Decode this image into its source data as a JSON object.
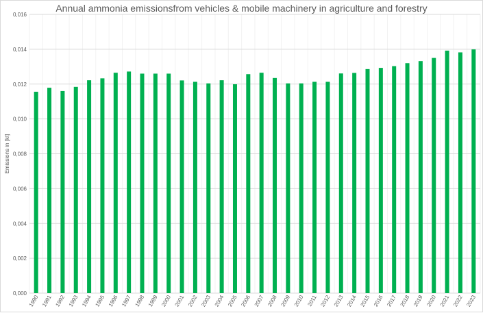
{
  "chart_data": {
    "type": "bar",
    "title": "Annual ammonia emissionsfrom vehicles & mobile machinery in agriculture and forestry",
    "xlabel": "",
    "ylabel": "Emissions in [kt]",
    "ylim": [
      0,
      0.016
    ],
    "yticks": [
      "0,000",
      "0,002",
      "0,004",
      "0,006",
      "0,008",
      "0,010",
      "0,012",
      "0,014",
      "0,016"
    ],
    "grid": true,
    "bar_color": "#00b050",
    "categories": [
      "1990",
      "1991",
      "1992",
      "1993",
      "1994",
      "1995",
      "1996",
      "1997",
      "1998",
      "1999",
      "2000",
      "2001",
      "2002",
      "2003",
      "2004",
      "2005",
      "2006",
      "2007",
      "2008",
      "2009",
      "2010",
      "2011",
      "2012",
      "2013",
      "2014",
      "2015",
      "2016",
      "2017",
      "2018",
      "2019",
      "2020",
      "2021",
      "2022",
      "2023"
    ],
    "values": [
      0.01156,
      0.01179,
      0.0116,
      0.01184,
      0.01222,
      0.01233,
      0.01265,
      0.01272,
      0.0126,
      0.0126,
      0.0126,
      0.01221,
      0.01213,
      0.01204,
      0.01222,
      0.01199,
      0.01257,
      0.01265,
      0.01235,
      0.01204,
      0.01204,
      0.01213,
      0.01213,
      0.01261,
      0.01264,
      0.01286,
      0.01293,
      0.01303,
      0.0132,
      0.01332,
      0.0135,
      0.01392,
      0.01382,
      0.01399
    ]
  }
}
